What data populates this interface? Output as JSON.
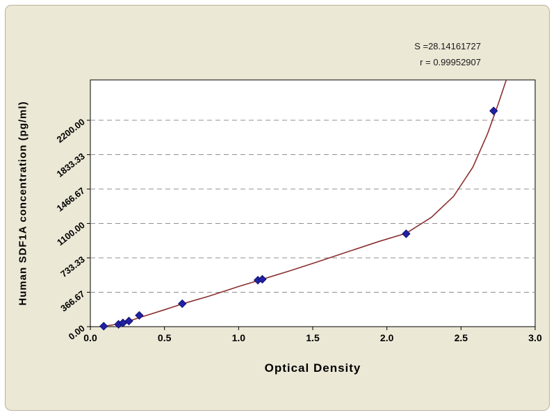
{
  "annotation": {
    "s_label": "S =28.14161727",
    "r_label": "r = 0.99952907"
  },
  "chart_data": {
    "type": "scatter",
    "title": "",
    "xlabel": "Optical Density",
    "ylabel": "Human SDF1A concentration (pg/ml)",
    "xlim": [
      0,
      3.0
    ],
    "ylim": [
      0,
      2630
    ],
    "grid": "horizontal-dashed",
    "legend": "none",
    "xticks": [
      {
        "v": 0.0,
        "label": "0.0"
      },
      {
        "v": 0.5,
        "label": "0.5"
      },
      {
        "v": 1.0,
        "label": "1.0"
      },
      {
        "v": 1.5,
        "label": "1.5"
      },
      {
        "v": 2.0,
        "label": "2.0"
      },
      {
        "v": 2.5,
        "label": "2.5"
      },
      {
        "v": 3.0,
        "label": "3.0"
      }
    ],
    "yticks": [
      {
        "v": 0,
        "label": "0.00"
      },
      {
        "v": 366.67,
        "label": "366.67"
      },
      {
        "v": 733.33,
        "label": "733.33"
      },
      {
        "v": 1100.0,
        "label": "1100.00"
      },
      {
        "v": 1466.67,
        "label": "1466.67"
      },
      {
        "v": 1833.33,
        "label": "1833.33"
      },
      {
        "v": 2200.0,
        "label": "2200.00"
      }
    ],
    "points": [
      {
        "x": 0.09,
        "y": 5
      },
      {
        "x": 0.19,
        "y": 25
      },
      {
        "x": 0.22,
        "y": 40
      },
      {
        "x": 0.26,
        "y": 60
      },
      {
        "x": 0.33,
        "y": 120
      },
      {
        "x": 0.62,
        "y": 245
      },
      {
        "x": 1.13,
        "y": 495
      },
      {
        "x": 1.16,
        "y": 505
      },
      {
        "x": 2.13,
        "y": 990
      },
      {
        "x": 2.72,
        "y": 2300
      }
    ],
    "curve": [
      [
        0.07,
        0
      ],
      [
        0.15,
        18
      ],
      [
        0.25,
        55
      ],
      [
        0.35,
        105
      ],
      [
        0.5,
        180
      ],
      [
        0.62,
        242
      ],
      [
        0.8,
        325
      ],
      [
        1.0,
        428
      ],
      [
        1.15,
        500
      ],
      [
        1.35,
        597
      ],
      [
        1.55,
        700
      ],
      [
        1.75,
        805
      ],
      [
        1.95,
        910
      ],
      [
        2.13,
        995
      ],
      [
        2.3,
        1165
      ],
      [
        2.45,
        1390
      ],
      [
        2.58,
        1700
      ],
      [
        2.68,
        2060
      ],
      [
        2.75,
        2370
      ],
      [
        2.82,
        2700
      ]
    ],
    "colors": {
      "curve": "#8b2f2f",
      "marker": "#2121a3",
      "marker_stroke": "#10106e",
      "grid": "#8f8f8f",
      "plot_bg": "#ffffff",
      "frame_bg": "#ece8d6",
      "axis": "#000000"
    }
  }
}
